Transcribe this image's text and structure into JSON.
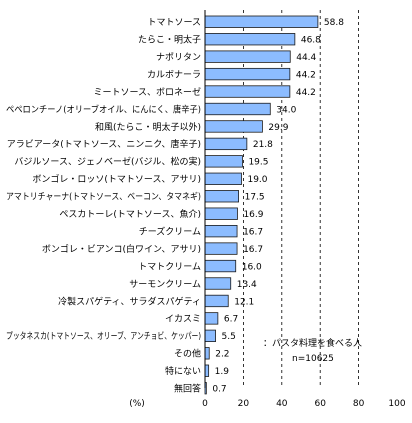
{
  "chart_data": {
    "type": "bar",
    "orientation": "horizontal",
    "categories": [
      "トマトソース",
      "たらこ・明太子",
      "ナポリタン",
      "カルボナーラ",
      "ミートソース、ボロネーゼ",
      "ペペロンチーノ(オリーブオイル、にんにく、唐辛子)",
      "和風(たらこ・明太子以外)",
      "アラビアータ(トマトソース、ニンニク、唐辛子)",
      "バジルソース、ジェノベーゼ(バジル、松の実)",
      "ボンゴレ・ロッソ(トマトソース、アサリ)",
      "アマトリチャーナ(トマトソース、ベーコン、タマネギ)",
      "ペスカトーレ(トマトソース、魚介)",
      "チーズクリーム",
      "ボンゴレ・ビアンコ(白ワイン、アサリ)",
      "トマトクリーム",
      "サーモンクリーム",
      "冷製スパゲティ、サラダスパゲティ",
      "イカスミ",
      "プッタネスカ(トマトソース、オリーブ、アンチョビ、ケッパー)",
      "その他",
      "特にない",
      "無回答"
    ],
    "values": [
      58.8,
      46.8,
      44.4,
      44.2,
      44.2,
      34.0,
      29.9,
      21.8,
      19.5,
      19.0,
      17.5,
      16.9,
      16.7,
      16.7,
      16.0,
      13.4,
      12.1,
      6.7,
      5.5,
      2.2,
      1.9,
      0.7
    ],
    "value_labels": [
      "58.8",
      "46.8",
      "44.4",
      "44.2",
      "44.2",
      "34.0",
      "29.9",
      "21.8",
      "19.5",
      "19.0",
      "17.5",
      "16.9",
      "16.7",
      "16.7",
      "16.0",
      "13.4",
      "12.1",
      "6.7",
      "5.5",
      "2.2",
      "1.9",
      "0.7"
    ],
    "xlim": [
      0,
      100
    ],
    "xticks": [
      0,
      20,
      40,
      60,
      80,
      100
    ],
    "xlabel": "(%)",
    "gridlines": [
      20,
      40,
      60,
      80
    ],
    "grid_style": "dashed",
    "legend_note": "：パスタ料理を食べる人",
    "sample_size": "n=10625",
    "colors": {
      "bar": "#8cbcff",
      "bar_edge": "#1a1a1a",
      "grid": "#000000"
    }
  }
}
